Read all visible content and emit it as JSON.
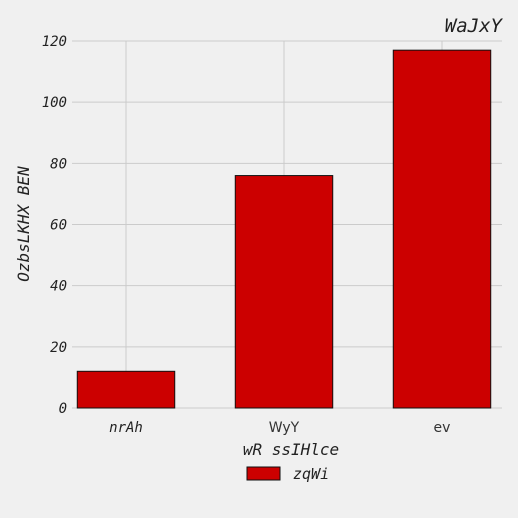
{
  "chart_data": {
    "type": "bar",
    "title": "WaJxY",
    "xlabel": "wR ssIHlce",
    "ylabel": "OzbsLKHX BEN",
    "categories": [
      "nrAh",
      "WyY",
      "ev"
    ],
    "series": [
      {
        "name": "zqWi",
        "values": [
          12,
          76,
          117
        ]
      }
    ],
    "ylim": [
      0,
      120
    ],
    "yticks": [
      0,
      20,
      40,
      60,
      80,
      100,
      120
    ],
    "colors": {
      "bar": "#cc0000",
      "background": "#f0f0f0",
      "grid": "#cbcbcb"
    },
    "grid": true,
    "legend_position": "bottom-center"
  }
}
